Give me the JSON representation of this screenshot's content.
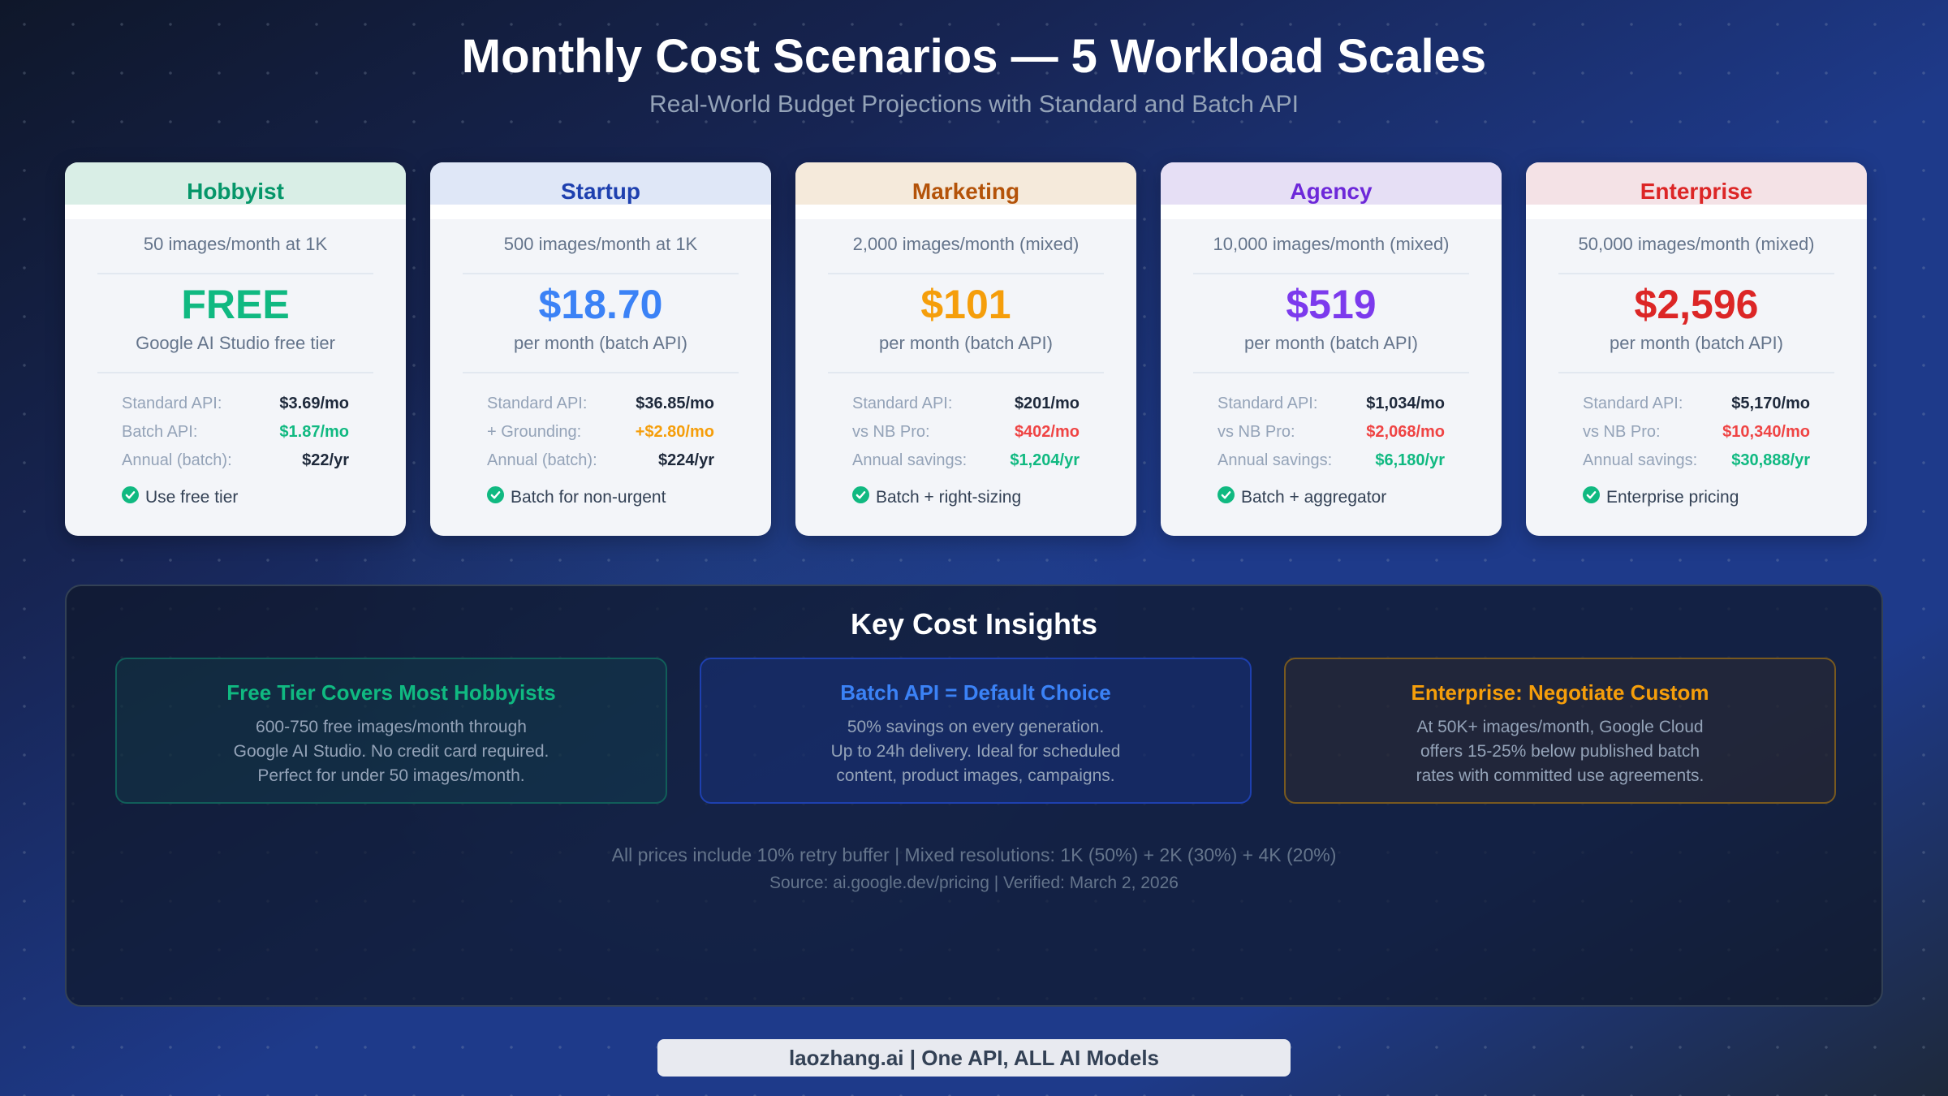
{
  "header": {
    "title": "Monthly Cost Scenarios — 5 Workload Scales",
    "subtitle": "Real-World Budget Projections with Standard and Batch API"
  },
  "cards": [
    {
      "name": "Hobbyist",
      "name_color": "#059669",
      "head_bg": "#d9eee6",
      "volume": "50 images/month at 1K",
      "price": "FREE",
      "price_color": "#10b981",
      "price_note": "Google AI Studio free tier",
      "rows": [
        {
          "label": "Standard API:",
          "value": "$3.69/mo",
          "color": "#1e293b"
        },
        {
          "label": "Batch API:",
          "value": "$1.87/mo",
          "color": "#10b981"
        },
        {
          "label": "Annual (batch):",
          "value": "$22/yr",
          "color": "#1e293b"
        }
      ],
      "tip": "Use free tier",
      "tip_icon": "check-circle-icon"
    },
    {
      "name": "Startup",
      "name_color": "#1e40af",
      "head_bg": "#dfe7f7",
      "volume": "500 images/month at 1K",
      "price": "$18.70",
      "price_color": "#3b82f6",
      "price_note": "per month (batch API)",
      "rows": [
        {
          "label": "Standard API:",
          "value": "$36.85/mo",
          "color": "#1e293b"
        },
        {
          "label": "+ Grounding:",
          "value": "+$2.80/mo",
          "color": "#f59e0b"
        },
        {
          "label": "Annual (batch):",
          "value": "$224/yr",
          "color": "#1e293b"
        }
      ],
      "tip": "Batch for non-urgent",
      "tip_icon": "check-circle-icon"
    },
    {
      "name": "Marketing",
      "name_color": "#b45309",
      "head_bg": "#f5eadb",
      "volume": "2,000 images/month (mixed)",
      "price": "$101",
      "price_color": "#f59e0b",
      "price_note": "per month (batch API)",
      "rows": [
        {
          "label": "Standard API:",
          "value": "$201/mo",
          "color": "#1e293b"
        },
        {
          "label": "vs NB Pro:",
          "value": "$402/mo",
          "color": "#ef4444"
        },
        {
          "label": "Annual savings:",
          "value": "$1,204/yr",
          "color": "#10b981"
        }
      ],
      "tip": "Batch + right-sizing",
      "tip_icon": "check-circle-icon"
    },
    {
      "name": "Agency",
      "name_color": "#6d28d9",
      "head_bg": "#e6dff5",
      "volume": "10,000 images/month (mixed)",
      "price": "$519",
      "price_color": "#7c3aed",
      "price_note": "per month (batch API)",
      "rows": [
        {
          "label": "Standard API:",
          "value": "$1,034/mo",
          "color": "#1e293b"
        },
        {
          "label": "vs NB Pro:",
          "value": "$2,068/mo",
          "color": "#ef4444"
        },
        {
          "label": "Annual savings:",
          "value": "$6,180/yr",
          "color": "#10b981"
        }
      ],
      "tip": "Batch + aggregator",
      "tip_icon": "check-circle-icon"
    },
    {
      "name": "Enterprise",
      "name_color": "#dc2626",
      "head_bg": "#f4e2e6",
      "volume": "50,000 images/month (mixed)",
      "price": "$2,596",
      "price_color": "#dc2626",
      "price_note": "per month (batch API)",
      "rows": [
        {
          "label": "Standard API:",
          "value": "$5,170/mo",
          "color": "#1e293b"
        },
        {
          "label": "vs NB Pro:",
          "value": "$10,340/mo",
          "color": "#ef4444"
        },
        {
          "label": "Annual savings:",
          "value": "$30,888/yr",
          "color": "#10b981"
        }
      ],
      "tip": "Enterprise pricing",
      "tip_icon": "check-circle-icon"
    }
  ],
  "insights": {
    "title": "Key Cost Insights",
    "items": [
      {
        "title": "Free Tier Covers Most Hobbyists",
        "title_color": "#10b981",
        "border": "#115e59",
        "bg": "rgba(17,94,89,0.22)",
        "lines": [
          "600-750 free images/month through",
          "Google AI Studio. No credit card required.",
          "Perfect for under 50 images/month."
        ]
      },
      {
        "title": "Batch API = Default Choice",
        "title_color": "#3b82f6",
        "border": "#1e40af",
        "bg": "rgba(30,64,175,0.28)",
        "lines": [
          "50% savings on every generation.",
          "Up to 24h delivery. Ideal for scheduled",
          "content, product images, campaigns."
        ]
      },
      {
        "title": "Enterprise: Negotiate Custom",
        "title_color": "#f59e0b",
        "border": "#78591f",
        "bg": "rgba(60,50,40,0.35)",
        "lines": [
          "At 50K+ images/month, Google Cloud",
          "offers 15-25% below published batch",
          "rates with committed use agreements."
        ]
      }
    ],
    "note": "All prices include 10% retry buffer | Mixed resolutions: 1K (50%) + 2K (30%) + 4K (20%)",
    "source": "Source: ai.google.dev/pricing | Verified: March 2, 2026"
  },
  "footer": {
    "brand": "laozhang.ai | One API, ALL AI Models"
  }
}
